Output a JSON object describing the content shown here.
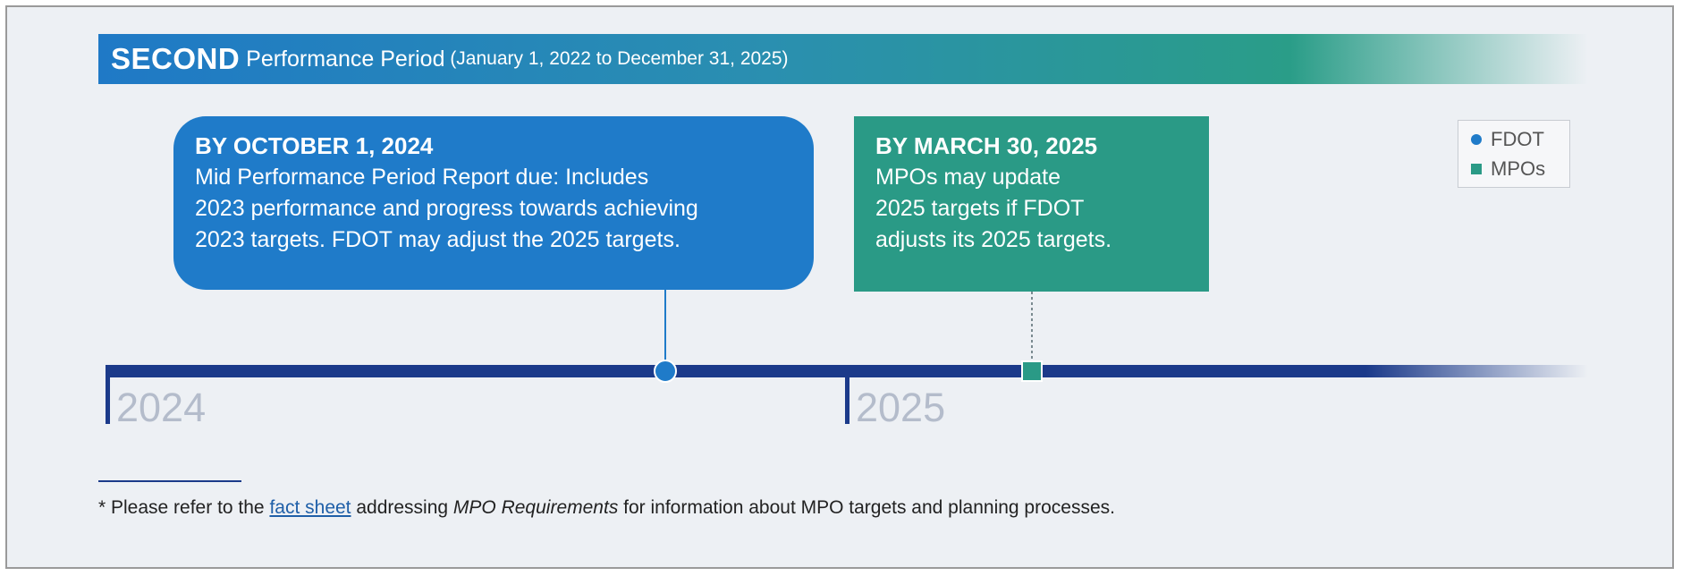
{
  "header": {
    "title_bold": "SECOND",
    "title": "Performance Period",
    "period": "(January 1, 2022 to December 31, 2025)"
  },
  "events": [
    {
      "date": "BY OCTOBER 1, 2024",
      "lines": [
        "Mid Performance Period Report due: Includes",
        "2023 performance and progress towards achieving",
        "2023 targets. FDOT may adjust the 2025 targets."
      ]
    },
    {
      "date": "BY MARCH 30, 2025",
      "lines": [
        "MPOs may update",
        "2025 targets if FDOT",
        "adjusts its 2025 targets."
      ]
    }
  ],
  "legend": [
    "FDOT",
    "MPOs"
  ],
  "timeline": {
    "years": [
      "2024",
      "2025"
    ]
  },
  "footnote": {
    "prefix": "* Please refer to the ",
    "link": "fact sheet",
    "middle": " addressing ",
    "italic": "MPO Requirements",
    "suffix": " for information about MPO targets and planning processes."
  }
}
